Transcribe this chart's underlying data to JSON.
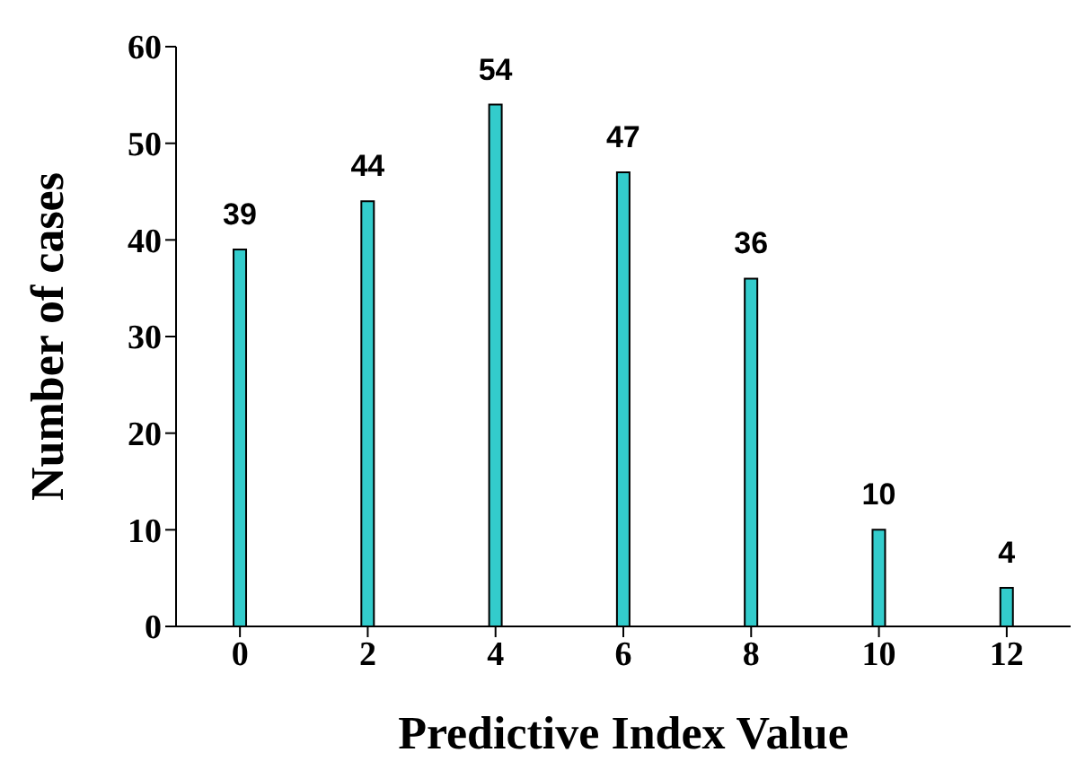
{
  "chart_data": {
    "type": "bar",
    "xlabel": "Predictive Index Value",
    "ylabel": "Number of cases",
    "categories": [
      "0",
      "2",
      "4",
      "6",
      "8",
      "10",
      "12"
    ],
    "values": [
      39,
      44,
      54,
      47,
      36,
      10,
      4
    ],
    "color": "#33cccc",
    "ylim": [
      0,
      60
    ],
    "yticks": [
      0,
      10,
      20,
      30,
      40,
      50,
      60
    ],
    "grid": false,
    "legend": false,
    "data_labels": true
  }
}
